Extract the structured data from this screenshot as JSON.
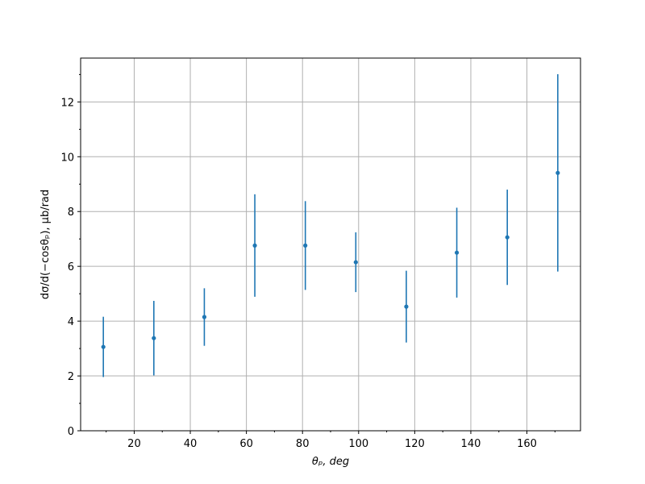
{
  "chart_data": {
    "type": "errorbar",
    "x_label": "θₚ, deg",
    "y_label": "dσ/d(−cosθₚ), μb/rad",
    "x": [
      9,
      27,
      45,
      63,
      81,
      99,
      117,
      135,
      153,
      171
    ],
    "series": [
      {
        "color": "#1f77b4",
        "values": [
          3.06,
          3.38,
          4.15,
          6.76,
          6.76,
          6.15,
          4.53,
          6.5,
          7.06,
          9.41
        ],
        "errors": [
          1.1,
          1.36,
          1.05,
          1.87,
          1.62,
          1.09,
          1.31,
          1.64,
          1.74,
          3.6
        ]
      }
    ],
    "xlim": [
      0.9,
      179.1
    ],
    "ylim": [
      0,
      13.6
    ],
    "xticks": [
      20,
      40,
      60,
      80,
      100,
      120,
      140,
      160
    ],
    "yticks": [
      0,
      2,
      4,
      6,
      8,
      10,
      12
    ],
    "xminorticks": [
      10,
      30,
      50,
      70,
      90,
      110,
      130,
      150,
      170
    ],
    "yminorticks": [
      1,
      3,
      5,
      7,
      9,
      11,
      13
    ],
    "grid": true
  }
}
